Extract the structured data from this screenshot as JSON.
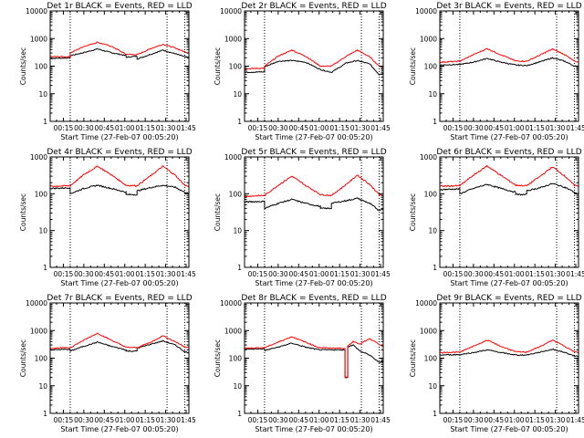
{
  "figure": {
    "type": "line-panel-grid",
    "background": "#ffffff",
    "colors": {
      "events": "#000000",
      "lld": "#ff0000",
      "axes": "#000000"
    }
  },
  "chart_data": [
    {
      "type": "line",
      "title": "Det 1r BLACK = Events, RED = LLD",
      "xlabel": "Start Time (27-Feb-07 00:05:20)",
      "ylabel": "Counts/sec",
      "y_scale": "log",
      "ylim": [
        1,
        10000
      ],
      "y_ticks": [
        "1",
        "10",
        "100",
        "1000",
        "10000"
      ],
      "x_ticks": [
        "00:15",
        "00:30",
        "00:45",
        "01:00",
        "01:15",
        "01:30",
        "01:45"
      ],
      "xlim_minutes": [
        5.33,
        107
      ],
      "vlines_minutes": [
        20,
        91,
        104
      ],
      "gap_minutes": [
        61,
        69
      ],
      "series": [
        {
          "name": "Events",
          "color": "#000000",
          "x": [
            5.3,
            20,
            20,
            30,
            40,
            50,
            61,
            61,
            69,
            69,
            80,
            88,
            97,
            104,
            107
          ],
          "y": [
            190,
            200,
            240,
            310,
            420,
            310,
            240,
            210,
            230,
            180,
            280,
            380,
            280,
            220,
            200
          ]
        },
        {
          "name": "LLD",
          "color": "#ff0000",
          "x": [
            5.3,
            20,
            20,
            30,
            40,
            50,
            61,
            69,
            80,
            88,
            97,
            104,
            107
          ],
          "y": [
            220,
            220,
            300,
            520,
            730,
            530,
            270,
            260,
            450,
            620,
            460,
            330,
            300
          ]
        }
      ]
    },
    {
      "type": "line",
      "title": "Det 2r BLACK = Events, RED = LLD",
      "xlabel": "Start Time (27-Feb-07 00:05:20)",
      "ylabel": "Counts/sec",
      "y_scale": "log",
      "ylim": [
        1,
        10000
      ],
      "y_ticks": [
        "1",
        "10",
        "100",
        "1000",
        "10000"
      ],
      "x_ticks": [
        "00:15",
        "00:30",
        "00:45",
        "01:00",
        "01:15",
        "01:30",
        "01:45"
      ],
      "xlim_minutes": [
        5.33,
        107
      ],
      "vlines_minutes": [
        20,
        91,
        104
      ],
      "gap_minutes": [
        61,
        69
      ],
      "series": [
        {
          "name": "Events",
          "color": "#000000",
          "x": [
            5.3,
            20,
            20,
            30,
            40,
            50,
            61,
            69,
            80,
            88,
            97,
            104,
            107
          ],
          "y": [
            60,
            62,
            95,
            150,
            160,
            140,
            75,
            60,
            130,
            160,
            120,
            50,
            55
          ]
        },
        {
          "name": "LLD",
          "color": "#ff0000",
          "x": [
            5.3,
            20,
            20,
            30,
            40,
            50,
            61,
            69,
            80,
            88,
            97,
            104,
            107
          ],
          "y": [
            80,
            85,
            100,
            230,
            380,
            230,
            100,
            100,
            230,
            380,
            220,
            100,
            95
          ]
        }
      ]
    },
    {
      "type": "line",
      "title": "Det 3r BLACK = Events, RED = LLD",
      "xlabel": "Start Time (27-Feb-07 00:05:20)",
      "ylabel": "Counts/sec",
      "y_scale": "log",
      "ylim": [
        1,
        10000
      ],
      "y_ticks": [
        "1",
        "10",
        "100",
        "1000",
        "10000"
      ],
      "x_ticks": [
        "00:15",
        "00:30",
        "00:45",
        "01:00",
        "01:15",
        "01:30",
        "01:45"
      ],
      "xlim_minutes": [
        5.33,
        107
      ],
      "vlines_minutes": [
        20,
        91,
        104
      ],
      "gap_minutes": [
        61,
        69
      ],
      "series": [
        {
          "name": "Events",
          "color": "#000000",
          "x": [
            5.3,
            20,
            30,
            40,
            50,
            61,
            69,
            80,
            88,
            97,
            104,
            107
          ],
          "y": [
            110,
            115,
            140,
            190,
            140,
            110,
            105,
            150,
            200,
            150,
            100,
            100
          ]
        },
        {
          "name": "LLD",
          "color": "#ff0000",
          "x": [
            5.3,
            20,
            30,
            40,
            50,
            61,
            69,
            80,
            88,
            97,
            104,
            107
          ],
          "y": [
            140,
            150,
            260,
            430,
            260,
            155,
            150,
            270,
            420,
            260,
            150,
            140
          ]
        }
      ]
    },
    {
      "type": "line",
      "title": "Det 4r BLACK = Events, RED = LLD",
      "xlabel": "Start Time (27-Feb-07 00:05:20)",
      "ylabel": "Counts/sec",
      "y_scale": "log",
      "ylim": [
        1,
        1000
      ],
      "y_ticks": [
        "1",
        "10",
        "100",
        "1000"
      ],
      "x_ticks": [
        "00:15",
        "00:30",
        "00:45",
        "01:00",
        "01:15",
        "01:30",
        "01:45"
      ],
      "xlim_minutes": [
        5.33,
        107
      ],
      "vlines_minutes": [
        20,
        91,
        104
      ],
      "gap_minutes": [
        61,
        69
      ],
      "series": [
        {
          "name": "Events",
          "color": "#000000",
          "x": [
            5.3,
            20,
            20,
            30,
            40,
            50,
            61,
            61,
            69,
            69,
            80,
            88,
            97,
            104,
            107
          ],
          "y": [
            140,
            145,
            100,
            140,
            170,
            140,
            110,
            95,
            95,
            120,
            150,
            170,
            150,
            110,
            100
          ]
        },
        {
          "name": "LLD",
          "color": "#ff0000",
          "x": [
            5.3,
            20,
            30,
            40,
            50,
            61,
            69,
            80,
            88,
            97,
            104,
            107
          ],
          "y": [
            160,
            165,
            330,
            560,
            330,
            170,
            165,
            330,
            560,
            320,
            170,
            160
          ]
        }
      ]
    },
    {
      "type": "line",
      "title": "Det 5r BLACK = Events, RED = LLD",
      "xlabel": "Start Time (27-Feb-07 00:05:20)",
      "ylabel": "Counts/sec",
      "y_scale": "log",
      "ylim": [
        1,
        1000
      ],
      "y_ticks": [
        "1",
        "10",
        "100",
        "1000"
      ],
      "x_ticks": [
        "00:15",
        "00:30",
        "00:45",
        "01:00",
        "01:15",
        "01:30",
        "01:45"
      ],
      "xlim_minutes": [
        5.33,
        107
      ],
      "vlines_minutes": [
        20,
        91,
        104
      ],
      "gap_minutes": [
        61,
        69
      ],
      "series": [
        {
          "name": "Events",
          "color": "#000000",
          "x": [
            5.3,
            20,
            20,
            30,
            40,
            50,
            61,
            61,
            69,
            69,
            80,
            88,
            97,
            104,
            107
          ],
          "y": [
            60,
            62,
            40,
            55,
            70,
            55,
            45,
            40,
            40,
            55,
            65,
            75,
            55,
            35,
            40
          ]
        },
        {
          "name": "LLD",
          "color": "#ff0000",
          "x": [
            5.3,
            20,
            30,
            40,
            50,
            61,
            69,
            80,
            88,
            97,
            104,
            107
          ],
          "y": [
            85,
            90,
            170,
            300,
            170,
            95,
            90,
            180,
            320,
            180,
            95,
            85
          ]
        }
      ]
    },
    {
      "type": "line",
      "title": "Det 6r BLACK = Events, RED = LLD",
      "xlabel": "Start Time (27-Feb-07 00:05:20)",
      "ylabel": "Counts/sec",
      "y_scale": "log",
      "ylim": [
        1,
        1000
      ],
      "y_ticks": [
        "1",
        "10",
        "100",
        "1000"
      ],
      "x_ticks": [
        "00:15",
        "00:30",
        "00:45",
        "01:00",
        "01:15",
        "01:30",
        "01:45"
      ],
      "xlim_minutes": [
        5.33,
        107
      ],
      "vlines_minutes": [
        20,
        91,
        104
      ],
      "gap_minutes": [
        61,
        69
      ],
      "series": [
        {
          "name": "Events",
          "color": "#000000",
          "x": [
            5.3,
            20,
            20,
            30,
            40,
            50,
            61,
            61,
            69,
            69,
            80,
            88,
            97,
            104,
            107
          ],
          "y": [
            130,
            135,
            100,
            140,
            180,
            140,
            110,
            95,
            95,
            120,
            150,
            190,
            150,
            110,
            100
          ]
        },
        {
          "name": "LLD",
          "color": "#ff0000",
          "x": [
            5.3,
            20,
            30,
            40,
            50,
            61,
            69,
            80,
            88,
            97,
            104,
            107
          ],
          "y": [
            160,
            165,
            320,
            570,
            320,
            170,
            165,
            320,
            540,
            300,
            170,
            160
          ]
        }
      ]
    },
    {
      "type": "line",
      "title": "Det 7r BLACK = Events, RED = LLD",
      "xlabel": "Start Time (27-Feb-07 00:05:20)",
      "ylabel": "Counts/sec",
      "y_scale": "log",
      "ylim": [
        1,
        10000
      ],
      "y_ticks": [
        "1",
        "10",
        "100",
        "1000",
        "10000"
      ],
      "x_ticks": [
        "00:15",
        "00:30",
        "00:45",
        "01:00",
        "01:15",
        "01:30",
        "01:45"
      ],
      "xlim_minutes": [
        5.33,
        107
      ],
      "vlines_minutes": [
        20,
        91,
        104
      ],
      "gap_minutes": [
        61,
        69
      ],
      "series": [
        {
          "name": "Events",
          "color": "#000000",
          "x": [
            5.3,
            20,
            20,
            30,
            40,
            50,
            61,
            61,
            69,
            69,
            80,
            88,
            97,
            104,
            107
          ],
          "y": [
            200,
            210,
            180,
            270,
            380,
            270,
            200,
            180,
            180,
            230,
            330,
            420,
            300,
            170,
            160
          ]
        },
        {
          "name": "LLD",
          "color": "#ff0000",
          "x": [
            5.3,
            20,
            30,
            40,
            50,
            61,
            69,
            80,
            88,
            97,
            104,
            107
          ],
          "y": [
            230,
            240,
            450,
            800,
            450,
            250,
            240,
            400,
            650,
            390,
            260,
            240
          ]
        }
      ]
    },
    {
      "type": "line",
      "title": "Det 8r BLACK = Events, RED = LLD",
      "xlabel": "Start Time (27-Feb-07 00:05:20)",
      "ylabel": "Counts/sec",
      "y_scale": "log",
      "ylim": [
        1,
        10000
      ],
      "y_ticks": [
        "1",
        "10",
        "100",
        "1000",
        "10000"
      ],
      "x_ticks": [
        "00:15",
        "00:30",
        "00:45",
        "01:00",
        "01:15",
        "01:30",
        "01:45"
      ],
      "xlim_minutes": [
        5.33,
        107
      ],
      "vlines_minutes": [
        20,
        91,
        104
      ],
      "gap_minutes": [
        61,
        69
      ],
      "series": [
        {
          "name": "Events",
          "color": "#000000",
          "x": [
            5.3,
            20,
            20,
            30,
            40,
            50,
            60,
            70,
            79,
            79,
            81,
            81,
            85,
            90,
            97,
            104,
            107
          ],
          "y": [
            210,
            220,
            190,
            250,
            350,
            250,
            200,
            200,
            200,
            20,
            20,
            260,
            300,
            180,
            130,
            70,
            80
          ]
        },
        {
          "name": "LLD",
          "color": "#ff0000",
          "x": [
            5.3,
            20,
            30,
            40,
            50,
            60,
            70,
            79,
            79,
            81,
            81,
            85,
            90,
            97,
            104,
            107
          ],
          "y": [
            230,
            240,
            380,
            600,
            380,
            240,
            230,
            230,
            20,
            20,
            280,
            400,
            330,
            500,
            320,
            250
          ]
        }
      ]
    },
    {
      "type": "line",
      "title": "Det 9r BLACK = Events, RED = LLD",
      "xlabel": "Start Time (27-Feb-07 00:05:20)",
      "ylabel": "Counts/sec",
      "y_scale": "log",
      "ylim": [
        1,
        10000
      ],
      "y_ticks": [
        "1",
        "10",
        "100",
        "1000",
        "10000"
      ],
      "x_ticks": [
        "00:15",
        "00:30",
        "00:45",
        "01:00",
        "01:15",
        "01:30",
        "01:45"
      ],
      "xlim_minutes": [
        5.33,
        107
      ],
      "vlines_minutes": [
        20,
        91,
        104
      ],
      "gap_minutes": [
        61,
        69
      ],
      "series": [
        {
          "name": "Events",
          "color": "#000000",
          "x": [
            5.3,
            20,
            30,
            40,
            50,
            61,
            69,
            80,
            88,
            97,
            104,
            107
          ],
          "y": [
            130,
            135,
            160,
            200,
            160,
            130,
            130,
            170,
            210,
            160,
            120,
            115
          ]
        },
        {
          "name": "LLD",
          "color": "#ff0000",
          "x": [
            5.3,
            20,
            30,
            40,
            50,
            61,
            69,
            80,
            88,
            97,
            104,
            107
          ],
          "y": [
            160,
            165,
            270,
            450,
            270,
            170,
            165,
            280,
            450,
            270,
            170,
            160
          ]
        }
      ]
    }
  ]
}
